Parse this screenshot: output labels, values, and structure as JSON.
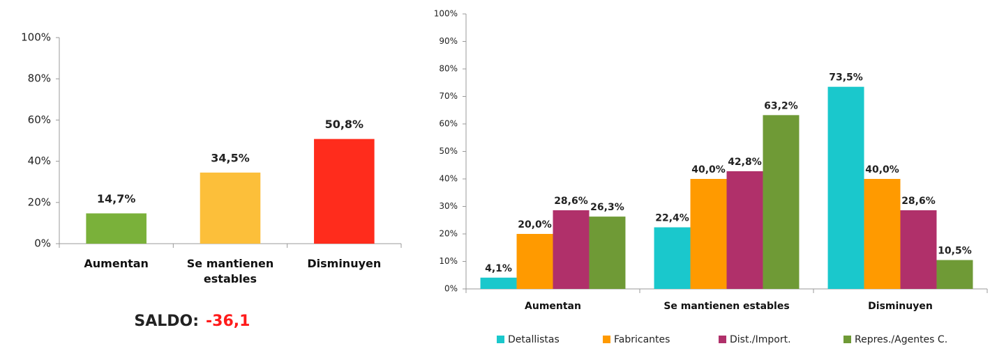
{
  "chart_data": [
    {
      "type": "bar",
      "categories": [
        "Aumentan",
        "Se mantienen estables",
        "Disminuyen"
      ],
      "values": [
        14.7,
        34.5,
        50.8
      ],
      "value_labels": [
        "14,7%",
        "34,5%",
        "50,8%"
      ],
      "colors": [
        "#7ab13a",
        "#fcbf3a",
        "#ff2c1c"
      ],
      "ylim": [
        0,
        100
      ],
      "yticks": [
        {
          "value": 0,
          "label": "0%"
        },
        {
          "value": 20,
          "label": "20%"
        },
        {
          "value": 40,
          "label": "40%"
        },
        {
          "value": 60,
          "label": "60%"
        },
        {
          "value": 80,
          "label": "80%"
        },
        {
          "value": 100,
          "label": "100%"
        }
      ],
      "saldo_label": "SALDO:",
      "saldo_value": "-36,1"
    },
    {
      "type": "bar",
      "categories": [
        "Aumentan",
        "Se mantienen estables",
        "Disminuyen"
      ],
      "series": [
        {
          "name": "Detallistas",
          "color": "#1ac8cc",
          "values": [
            4.1,
            22.4,
            73.5
          ],
          "value_labels": [
            "4,1%",
            "22,4%",
            "73,5%"
          ]
        },
        {
          "name": "Fabricantes",
          "color": "#ff9a00",
          "values": [
            20.0,
            40.0,
            40.0
          ],
          "value_labels": [
            "20,0%",
            "40,0%",
            "40,0%"
          ]
        },
        {
          "name": "Dist./Import.",
          "color": "#b0306a",
          "values": [
            28.6,
            42.8,
            28.6
          ],
          "value_labels": [
            "28,6%",
            "42,8%",
            "28,6%"
          ]
        },
        {
          "name": "Repres./Agentes C.",
          "color": "#6f9a36",
          "values": [
            26.3,
            63.2,
            10.5
          ],
          "value_labels": [
            "26,3%",
            "63,2%",
            "10,5%"
          ]
        }
      ],
      "ylim": [
        0,
        100
      ],
      "yticks": [
        {
          "value": 0,
          "label": "0%"
        },
        {
          "value": 10,
          "label": "10%"
        },
        {
          "value": 20,
          "label": "20%"
        },
        {
          "value": 30,
          "label": "30%"
        },
        {
          "value": 40,
          "label": "40%"
        },
        {
          "value": 50,
          "label": "50%"
        },
        {
          "value": 60,
          "label": "60%"
        },
        {
          "value": 70,
          "label": "70%"
        },
        {
          "value": 80,
          "label": "80%"
        },
        {
          "value": 90,
          "label": "90%"
        },
        {
          "value": 100,
          "label": "100%"
        }
      ],
      "legend": "bottom"
    }
  ]
}
